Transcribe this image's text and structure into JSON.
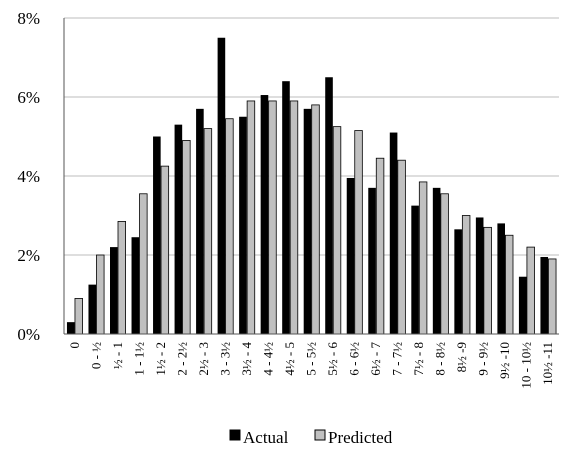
{
  "chart_data": {
    "type": "bar",
    "categories": [
      "0",
      "0 - ½",
      "½ - 1",
      "1 - 1½",
      "1½ - 2",
      "2 - 2½",
      "2½ - 3",
      "3 - 3½",
      "3½ - 4",
      "4 - 4½",
      "4½ - 5",
      "5 - 5½",
      "5½ - 6",
      "6 - 6½",
      "6½ - 7",
      "7 - 7½",
      "7½ - 8",
      "8 - 8½",
      "8½ -9",
      "9 - 9½",
      "9½ -10",
      "10 - 10½",
      "10½ -11"
    ],
    "series": [
      {
        "name": "Actual",
        "color": "#000000",
        "values": [
          0.3,
          1.25,
          2.2,
          2.45,
          5.0,
          5.3,
          5.7,
          7.5,
          5.5,
          6.05,
          6.4,
          5.7,
          6.5,
          3.95,
          3.7,
          5.1,
          3.25,
          3.7,
          2.65,
          2.95,
          2.8,
          1.45,
          1.95
        ]
      },
      {
        "name": "Predicted",
        "color": "#c0c0c0",
        "values": [
          0.9,
          2.0,
          2.85,
          3.55,
          4.25,
          4.9,
          5.2,
          5.45,
          5.9,
          5.9,
          5.9,
          5.8,
          5.25,
          5.15,
          4.45,
          4.4,
          3.85,
          3.55,
          3.0,
          2.7,
          2.5,
          2.2,
          1.9
        ]
      }
    ],
    "yticks": [
      "0%",
      "2%",
      "4%",
      "6%",
      "8%"
    ],
    "ylim": [
      0,
      8
    ],
    "grid": true,
    "legend": "bottom"
  }
}
